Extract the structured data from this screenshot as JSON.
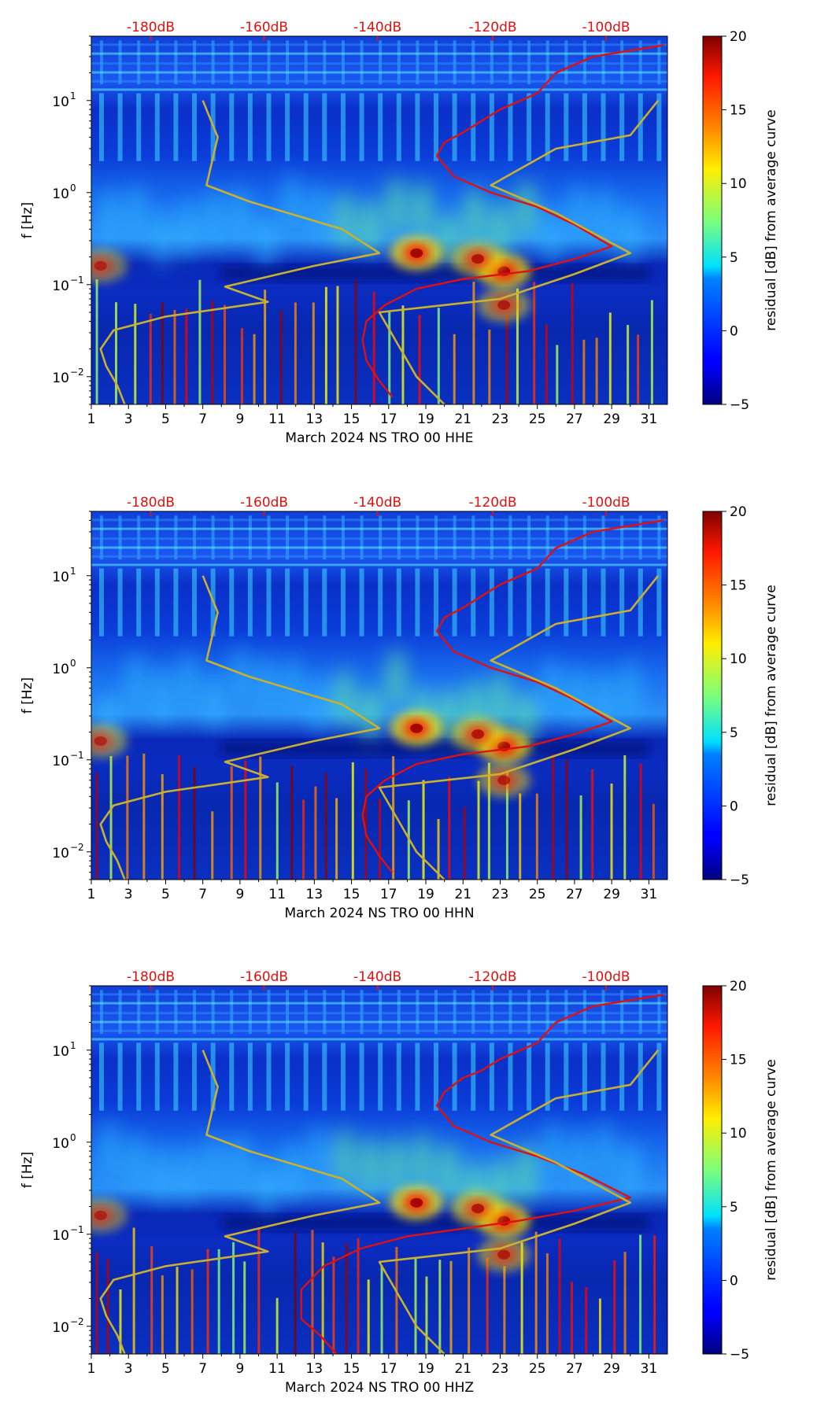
{
  "colors": {
    "noise_model": "#e01010",
    "median_curve": "#c8b030",
    "top_labels": "#e01010"
  },
  "colorbar": {
    "label": "residual [dB] from average curve",
    "ticks": [
      20,
      15,
      10,
      5,
      0,
      -5
    ],
    "range": [
      -5,
      20
    ],
    "colormap": "jet"
  },
  "chart_data": [
    {
      "type": "heatmap",
      "xlabel": "March 2024 NS TRO 00 HHE",
      "ylabel": "f [Hz]",
      "y_scale": "log",
      "ylim": [
        0.005,
        50
      ],
      "xlim": [
        1,
        32
      ],
      "x_ticks": [
        1,
        3,
        5,
        7,
        9,
        11,
        13,
        15,
        17,
        19,
        21,
        23,
        25,
        27,
        29,
        31
      ],
      "y_ticks": [
        {
          "value": 0.01,
          "base": "10",
          "exp": "−2"
        },
        {
          "value": 0.1,
          "base": "10",
          "exp": "−1"
        },
        {
          "value": 1,
          "base": "10",
          "exp": "0"
        },
        {
          "value": 10,
          "base": "10",
          "exp": "1"
        }
      ],
      "top_labels": [
        {
          "day": 4.2,
          "text": "-180dB"
        },
        {
          "day": 10.3,
          "text": "-160dB"
        },
        {
          "day": 16.4,
          "text": "-140dB"
        },
        {
          "day": 22.6,
          "text": "-120dB"
        },
        {
          "day": 28.7,
          "text": "-100dB"
        }
      ],
      "series": [
        {
          "style": "noise-model",
          "points": [
            [
              31.8,
              40
            ],
            [
              28,
              30
            ],
            [
              26,
              20
            ],
            [
              25,
              12
            ],
            [
              23,
              8
            ],
            [
              22,
              6
            ],
            [
              21,
              4.5
            ],
            [
              20,
              3.5
            ],
            [
              19.6,
              2.5
            ],
            [
              20.5,
              1.5
            ],
            [
              22.5,
              1.0
            ],
            [
              25,
              0.7
            ],
            [
              27,
              0.45
            ],
            [
              29,
              0.26
            ],
            [
              27,
              0.19
            ],
            [
              24.5,
              0.14
            ],
            [
              21,
              0.115
            ],
            [
              18.5,
              0.09
            ],
            [
              16.8,
              0.06
            ],
            [
              15.8,
              0.04
            ],
            [
              15.6,
              0.025
            ],
            [
              15.8,
              0.015
            ],
            [
              16.5,
              0.009
            ],
            [
              17.2,
              0.006
            ]
          ]
        },
        {
          "style": "median",
          "points": [
            [
              7.0,
              10
            ],
            [
              7.8,
              4
            ],
            [
              7.2,
              1.2
            ],
            [
              9.5,
              0.8
            ],
            [
              14.5,
              0.4
            ],
            [
              16.5,
              0.22
            ],
            [
              13,
              0.16
            ],
            [
              8.2,
              0.095
            ],
            [
              10.5,
              0.065
            ],
            [
              5,
              0.045
            ],
            [
              2.2,
              0.032
            ],
            [
              1.5,
              0.02
            ],
            [
              1.8,
              0.013
            ],
            [
              2.4,
              0.008
            ],
            [
              2.8,
              0.005
            ]
          ]
        },
        {
          "style": "median",
          "points": [
            [
              31.5,
              10
            ],
            [
              30,
              4.2
            ],
            [
              26,
              3.0
            ],
            [
              22.5,
              1.2
            ],
            [
              26,
              0.6
            ],
            [
              30,
              0.22
            ],
            [
              27,
              0.13
            ],
            [
              23,
              0.07
            ],
            [
              16.5,
              0.05
            ],
            [
              18.5,
              0.01
            ],
            [
              20,
              0.005
            ]
          ]
        }
      ],
      "hotspots": [
        {
          "day": 18.5,
          "freq": 0.22,
          "strength": 1.0
        },
        {
          "day": 23.2,
          "freq": 0.14,
          "strength": 1.0
        },
        {
          "day": 21.8,
          "freq": 0.19,
          "strength": 0.8
        },
        {
          "day": 23.2,
          "freq": 0.06,
          "strength": 0.7
        },
        {
          "day": 1.5,
          "freq": 0.16,
          "strength": 0.6
        }
      ]
    },
    {
      "type": "heatmap",
      "xlabel": "March 2024 NS TRO 00 HHN",
      "ylabel": "f [Hz]",
      "y_scale": "log",
      "ylim": [
        0.005,
        50
      ],
      "xlim": [
        1,
        32
      ],
      "x_ticks": [
        1,
        3,
        5,
        7,
        9,
        11,
        13,
        15,
        17,
        19,
        21,
        23,
        25,
        27,
        29,
        31
      ],
      "y_ticks": [
        {
          "value": 0.01,
          "base": "10",
          "exp": "−2"
        },
        {
          "value": 0.1,
          "base": "10",
          "exp": "−1"
        },
        {
          "value": 1,
          "base": "10",
          "exp": "0"
        },
        {
          "value": 10,
          "base": "10",
          "exp": "1"
        }
      ],
      "top_labels": [
        {
          "day": 4.2,
          "text": "-180dB"
        },
        {
          "day": 10.3,
          "text": "-160dB"
        },
        {
          "day": 16.4,
          "text": "-140dB"
        },
        {
          "day": 22.6,
          "text": "-120dB"
        },
        {
          "day": 28.7,
          "text": "-100dB"
        }
      ],
      "series": [
        {
          "style": "noise-model",
          "points": [
            [
              31.8,
              40
            ],
            [
              28,
              30
            ],
            [
              26,
              20
            ],
            [
              25,
              12
            ],
            [
              23,
              8
            ],
            [
              22,
              6
            ],
            [
              21,
              4.5
            ],
            [
              20,
              3.5
            ],
            [
              19.6,
              2.5
            ],
            [
              20.5,
              1.5
            ],
            [
              22.5,
              1.0
            ],
            [
              25,
              0.7
            ],
            [
              27,
              0.45
            ],
            [
              29,
              0.26
            ],
            [
              27,
              0.19
            ],
            [
              24.5,
              0.14
            ],
            [
              21,
              0.115
            ],
            [
              18.5,
              0.09
            ],
            [
              16.8,
              0.06
            ],
            [
              15.8,
              0.04
            ],
            [
              15.6,
              0.025
            ],
            [
              15.8,
              0.015
            ],
            [
              16.5,
              0.009
            ],
            [
              17.2,
              0.006
            ]
          ]
        },
        {
          "style": "median",
          "points": [
            [
              7.0,
              10
            ],
            [
              7.8,
              4
            ],
            [
              7.2,
              1.2
            ],
            [
              9.5,
              0.8
            ],
            [
              14.5,
              0.4
            ],
            [
              16.5,
              0.22
            ],
            [
              13,
              0.16
            ],
            [
              8.2,
              0.095
            ],
            [
              10.5,
              0.065
            ],
            [
              5,
              0.045
            ],
            [
              2.2,
              0.032
            ],
            [
              1.5,
              0.02
            ],
            [
              1.8,
              0.013
            ],
            [
              2.4,
              0.008
            ],
            [
              2.8,
              0.005
            ]
          ]
        },
        {
          "style": "median",
          "points": [
            [
              31.5,
              10
            ],
            [
              30,
              4.2
            ],
            [
              26,
              3.0
            ],
            [
              22.5,
              1.2
            ],
            [
              26,
              0.6
            ],
            [
              30,
              0.22
            ],
            [
              27,
              0.13
            ],
            [
              23,
              0.07
            ],
            [
              16.5,
              0.05
            ],
            [
              18.5,
              0.01
            ],
            [
              20,
              0.005
            ]
          ]
        }
      ],
      "hotspots": [
        {
          "day": 18.5,
          "freq": 0.22,
          "strength": 1.0
        },
        {
          "day": 23.2,
          "freq": 0.14,
          "strength": 1.0
        },
        {
          "day": 21.8,
          "freq": 0.19,
          "strength": 0.8
        },
        {
          "day": 23.2,
          "freq": 0.06,
          "strength": 0.7
        },
        {
          "day": 1.5,
          "freq": 0.16,
          "strength": 0.6
        }
      ]
    },
    {
      "type": "heatmap",
      "xlabel": "March 2024 NS TRO 00 HHZ",
      "ylabel": "f [Hz]",
      "y_scale": "log",
      "ylim": [
        0.005,
        50
      ],
      "xlim": [
        1,
        32
      ],
      "x_ticks": [
        1,
        3,
        5,
        7,
        9,
        11,
        13,
        15,
        17,
        19,
        21,
        23,
        25,
        27,
        29,
        31
      ],
      "y_ticks": [
        {
          "value": 0.01,
          "base": "10",
          "exp": "−2"
        },
        {
          "value": 0.1,
          "base": "10",
          "exp": "−1"
        },
        {
          "value": 1,
          "base": "10",
          "exp": "0"
        },
        {
          "value": 10,
          "base": "10",
          "exp": "1"
        }
      ],
      "top_labels": [
        {
          "day": 4.2,
          "text": "-180dB"
        },
        {
          "day": 10.3,
          "text": "-160dB"
        },
        {
          "day": 16.4,
          "text": "-140dB"
        },
        {
          "day": 22.6,
          "text": "-120dB"
        },
        {
          "day": 28.7,
          "text": "-100dB"
        }
      ],
      "series": [
        {
          "style": "noise-model",
          "points": [
            [
              31.8,
              40
            ],
            [
              28,
              30
            ],
            [
              26,
              20
            ],
            [
              25,
              12
            ],
            [
              23,
              8
            ],
            [
              22,
              6
            ],
            [
              21,
              5
            ],
            [
              20,
              3.5
            ],
            [
              19.6,
              2.5
            ],
            [
              20.5,
              1.5
            ],
            [
              22.5,
              1.0
            ],
            [
              25,
              0.7
            ],
            [
              27.5,
              0.45
            ],
            [
              30,
              0.25
            ],
            [
              27,
              0.18
            ],
            [
              24,
              0.14
            ],
            [
              21,
              0.115
            ],
            [
              18,
              0.095
            ],
            [
              15.5,
              0.07
            ],
            [
              13.5,
              0.045
            ],
            [
              12.3,
              0.025
            ],
            [
              12.3,
              0.012
            ],
            [
              13.3,
              0.008
            ],
            [
              14.2,
              0.005
            ]
          ]
        },
        {
          "style": "median",
          "points": [
            [
              7.0,
              10
            ],
            [
              7.8,
              4
            ],
            [
              7.2,
              1.2
            ],
            [
              9.5,
              0.8
            ],
            [
              14.5,
              0.4
            ],
            [
              16.5,
              0.22
            ],
            [
              13,
              0.16
            ],
            [
              8.2,
              0.095
            ],
            [
              10.5,
              0.065
            ],
            [
              5,
              0.045
            ],
            [
              2.2,
              0.032
            ],
            [
              1.5,
              0.02
            ],
            [
              1.8,
              0.013
            ],
            [
              2.4,
              0.008
            ],
            [
              2.8,
              0.005
            ]
          ]
        },
        {
          "style": "median",
          "points": [
            [
              31.5,
              10
            ],
            [
              30,
              4.2
            ],
            [
              26,
              3.0
            ],
            [
              22.5,
              1.2
            ],
            [
              26,
              0.6
            ],
            [
              30,
              0.22
            ],
            [
              27,
              0.13
            ],
            [
              23,
              0.07
            ],
            [
              16.5,
              0.05
            ],
            [
              18.5,
              0.01
            ],
            [
              20,
              0.005
            ]
          ]
        }
      ],
      "hotspots": [
        {
          "day": 18.5,
          "freq": 0.22,
          "strength": 1.0
        },
        {
          "day": 23.2,
          "freq": 0.14,
          "strength": 1.0
        },
        {
          "day": 21.8,
          "freq": 0.19,
          "strength": 0.8
        },
        {
          "day": 23.2,
          "freq": 0.06,
          "strength": 0.7
        },
        {
          "day": 1.5,
          "freq": 0.16,
          "strength": 0.6
        }
      ]
    }
  ]
}
